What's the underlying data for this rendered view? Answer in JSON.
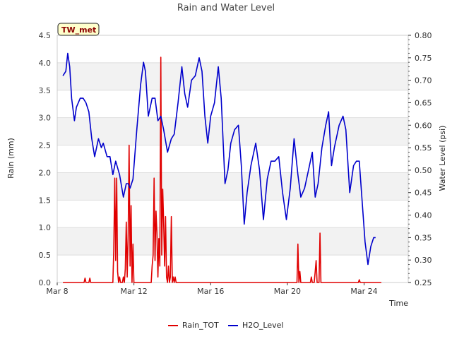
{
  "chart_data": {
    "type": "line",
    "title": "Rain and Water Level",
    "badge": "TW_met",
    "xlabel": "Time",
    "ylabel_left": "Rain (mm)",
    "ylabel_right": "Water Level (psi)",
    "x_range_days": [
      0,
      18.3
    ],
    "x_ticks": [
      {
        "day": 0,
        "label": "Mar 8"
      },
      {
        "day": 4,
        "label": "Mar 12"
      },
      {
        "day": 8,
        "label": "Mar 16"
      },
      {
        "day": 12,
        "label": "Mar 20"
      },
      {
        "day": 16,
        "label": "Mar 24"
      }
    ],
    "ylim_left": [
      0.0,
      4.5
    ],
    "y_ticks_left": [
      "0.0",
      "0.5",
      "1.0",
      "1.5",
      "2.0",
      "2.5",
      "3.0",
      "3.5",
      "4.0",
      "4.5"
    ],
    "ylim_right": [
      0.25,
      0.8
    ],
    "y_ticks_right": [
      "0.25",
      "0.30",
      "0.35",
      "0.40",
      "0.45",
      "0.50",
      "0.55",
      "0.60",
      "0.65",
      "0.70",
      "0.75",
      "0.80"
    ],
    "band_ranges_left": [
      [
        0.5,
        1.0
      ],
      [
        1.5,
        2.0
      ],
      [
        2.5,
        3.0
      ],
      [
        3.5,
        4.0
      ]
    ],
    "series": [
      {
        "name": "Rain_TOT",
        "color": "#e00000",
        "axis": "left",
        "points": [
          [
            0.3,
            0.0
          ],
          [
            1.4,
            0.0
          ],
          [
            1.45,
            0.08
          ],
          [
            1.5,
            0.0
          ],
          [
            1.65,
            0.0
          ],
          [
            1.7,
            0.08
          ],
          [
            1.75,
            0.0
          ],
          [
            2.9,
            0.0
          ],
          [
            2.95,
            0.6
          ],
          [
            3.0,
            1.9
          ],
          [
            3.05,
            0.4
          ],
          [
            3.1,
            1.9
          ],
          [
            3.15,
            0.2
          ],
          [
            3.2,
            0.0
          ],
          [
            3.25,
            0.1
          ],
          [
            3.3,
            0.0
          ],
          [
            3.4,
            0.0
          ],
          [
            3.45,
            0.1
          ],
          [
            3.5,
            0.0
          ],
          [
            3.55,
            0.25
          ],
          [
            3.6,
            1.1
          ],
          [
            3.65,
            0.1
          ],
          [
            3.7,
            0.9
          ],
          [
            3.75,
            2.5
          ],
          [
            3.8,
            0.3
          ],
          [
            3.85,
            1.4
          ],
          [
            3.9,
            0.0
          ],
          [
            3.95,
            0.7
          ],
          [
            4.0,
            0.0
          ],
          [
            4.9,
            0.0
          ],
          [
            4.95,
            0.3
          ],
          [
            5.0,
            0.5
          ],
          [
            5.05,
            1.9
          ],
          [
            5.1,
            0.4
          ],
          [
            5.15,
            1.3
          ],
          [
            5.2,
            0.9
          ],
          [
            5.25,
            0.1
          ],
          [
            5.3,
            0.8
          ],
          [
            5.35,
            0.3
          ],
          [
            5.4,
            4.1
          ],
          [
            5.45,
            0.5
          ],
          [
            5.5,
            1.7
          ],
          [
            5.55,
            1.1
          ],
          [
            5.6,
            0.3
          ],
          [
            5.65,
            1.2
          ],
          [
            5.7,
            0.1
          ],
          [
            5.75,
            0.0
          ],
          [
            5.8,
            0.3
          ],
          [
            5.85,
            0.0
          ],
          [
            5.9,
            0.1
          ],
          [
            5.95,
            1.2
          ],
          [
            6.0,
            0.0
          ],
          [
            6.05,
            0.1
          ],
          [
            6.1,
            0.0
          ],
          [
            6.15,
            0.1
          ],
          [
            6.2,
            0.0
          ],
          [
            12.5,
            0.0
          ],
          [
            12.55,
            0.7
          ],
          [
            12.6,
            0.0
          ],
          [
            12.65,
            0.2
          ],
          [
            12.7,
            0.0
          ],
          [
            13.2,
            0.0
          ],
          [
            13.25,
            0.1
          ],
          [
            13.3,
            0.0
          ],
          [
            13.4,
            0.0
          ],
          [
            13.45,
            0.2
          ],
          [
            13.5,
            0.4
          ],
          [
            13.55,
            0.0
          ],
          [
            13.65,
            0.0
          ],
          [
            13.7,
            0.9
          ],
          [
            13.75,
            0.0
          ],
          [
            15.7,
            0.0
          ],
          [
            15.75,
            0.05
          ],
          [
            15.8,
            0.0
          ],
          [
            16.9,
            0.0
          ]
        ]
      },
      {
        "name": "H2O_Level",
        "color": "#0000cc",
        "axis": "right",
        "points": [
          [
            0.3,
            0.71
          ],
          [
            0.45,
            0.72
          ],
          [
            0.55,
            0.76
          ],
          [
            0.65,
            0.73
          ],
          [
            0.75,
            0.66
          ],
          [
            0.9,
            0.61
          ],
          [
            1.0,
            0.64
          ],
          [
            1.2,
            0.66
          ],
          [
            1.35,
            0.66
          ],
          [
            1.5,
            0.65
          ],
          [
            1.65,
            0.63
          ],
          [
            1.8,
            0.57
          ],
          [
            1.95,
            0.53
          ],
          [
            2.15,
            0.57
          ],
          [
            2.3,
            0.55
          ],
          [
            2.4,
            0.56
          ],
          [
            2.6,
            0.53
          ],
          [
            2.75,
            0.53
          ],
          [
            2.9,
            0.49
          ],
          [
            3.05,
            0.52
          ],
          [
            3.25,
            0.49
          ],
          [
            3.45,
            0.44
          ],
          [
            3.6,
            0.47
          ],
          [
            3.7,
            0.47
          ],
          [
            3.8,
            0.46
          ],
          [
            3.95,
            0.48
          ],
          [
            4.15,
            0.59
          ],
          [
            4.35,
            0.69
          ],
          [
            4.5,
            0.74
          ],
          [
            4.6,
            0.72
          ],
          [
            4.75,
            0.62
          ],
          [
            4.95,
            0.66
          ],
          [
            5.1,
            0.66
          ],
          [
            5.25,
            0.61
          ],
          [
            5.4,
            0.62
          ],
          [
            5.55,
            0.59
          ],
          [
            5.75,
            0.54
          ],
          [
            5.95,
            0.57
          ],
          [
            6.1,
            0.58
          ],
          [
            6.3,
            0.65
          ],
          [
            6.5,
            0.73
          ],
          [
            6.65,
            0.67
          ],
          [
            6.8,
            0.64
          ],
          [
            7.0,
            0.7
          ],
          [
            7.2,
            0.71
          ],
          [
            7.4,
            0.75
          ],
          [
            7.55,
            0.72
          ],
          [
            7.7,
            0.62
          ],
          [
            7.85,
            0.56
          ],
          [
            8.0,
            0.62
          ],
          [
            8.2,
            0.65
          ],
          [
            8.4,
            0.73
          ],
          [
            8.55,
            0.66
          ],
          [
            8.75,
            0.47
          ],
          [
            8.9,
            0.5
          ],
          [
            9.05,
            0.56
          ],
          [
            9.25,
            0.59
          ],
          [
            9.45,
            0.6
          ],
          [
            9.6,
            0.51
          ],
          [
            9.75,
            0.38
          ],
          [
            9.9,
            0.45
          ],
          [
            10.1,
            0.51
          ],
          [
            10.35,
            0.56
          ],
          [
            10.55,
            0.5
          ],
          [
            10.75,
            0.39
          ],
          [
            10.95,
            0.48
          ],
          [
            11.15,
            0.52
          ],
          [
            11.35,
            0.52
          ],
          [
            11.55,
            0.53
          ],
          [
            11.75,
            0.45
          ],
          [
            11.95,
            0.39
          ],
          [
            12.15,
            0.46
          ],
          [
            12.35,
            0.57
          ],
          [
            12.55,
            0.49
          ],
          [
            12.7,
            0.44
          ],
          [
            12.9,
            0.46
          ],
          [
            13.1,
            0.5
          ],
          [
            13.3,
            0.54
          ],
          [
            13.45,
            0.44
          ],
          [
            13.6,
            0.47
          ],
          [
            13.8,
            0.55
          ],
          [
            14.0,
            0.6
          ],
          [
            14.15,
            0.63
          ],
          [
            14.3,
            0.51
          ],
          [
            14.45,
            0.55
          ],
          [
            14.7,
            0.6
          ],
          [
            14.9,
            0.62
          ],
          [
            15.05,
            0.59
          ],
          [
            15.25,
            0.45
          ],
          [
            15.45,
            0.51
          ],
          [
            15.6,
            0.52
          ],
          [
            15.75,
            0.52
          ],
          [
            15.9,
            0.43
          ],
          [
            16.05,
            0.34
          ],
          [
            16.2,
            0.29
          ],
          [
            16.35,
            0.33
          ],
          [
            16.5,
            0.35
          ],
          [
            16.6,
            0.35
          ]
        ]
      }
    ],
    "legend": [
      {
        "label": "Rain_TOT",
        "color": "#e00000"
      },
      {
        "label": "H2O_Level",
        "color": "#0000cc"
      }
    ],
    "legend_position": "bottom-center"
  }
}
